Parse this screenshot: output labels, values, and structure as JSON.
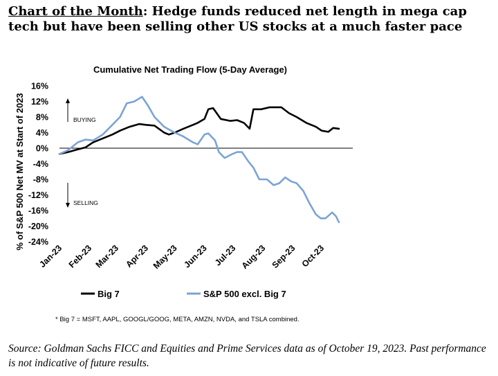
{
  "headline": {
    "lead": "Chart of the Month",
    "rest": ": Hedge funds reduced net length in mega cap tech but have been selling other US stocks at a much faster pace"
  },
  "footer": {
    "source": "Source: Goldman Sachs FICC and Equities and Prime Services data as of October 19, 2023. Past performance is not indicative of future results."
  },
  "chart_data": {
    "type": "line",
    "title": "Cumulative Net Trading Flow (5-Day Average)",
    "ylabel": "% of S&P 500 Net MV at Start of 2023",
    "xlabel": "",
    "ylim": [
      -24,
      16
    ],
    "y_ticks": [
      "16%",
      "12%",
      "8%",
      "4%",
      "0%",
      "-4%",
      "-8%",
      "-12%",
      "-16%",
      "-20%",
      "-24%"
    ],
    "x_ticks": [
      "Jan-23",
      "Feb-23",
      "Mar-23",
      "Apr-23",
      "May-23",
      "Jun-23",
      "Jul-23",
      "Aug-23",
      "Sep-23",
      "Oct-23"
    ],
    "annotations": {
      "buying": "BUYING",
      "selling": "SELLING"
    },
    "footnote": "* Big 7 = MSFT, AAPL, GOOGL/GOOG, META, AMZN, NVDA, and TSLA combined.",
    "legend_position": "bottom-left",
    "series": [
      {
        "name": "Big 7",
        "color": "#000000",
        "points": [
          [
            "2023-01-01",
            -1.5
          ],
          [
            "2023-01-10",
            -1.0
          ],
          [
            "2023-01-20",
            -0.3
          ],
          [
            "2023-01-28",
            0.2
          ],
          [
            "2023-02-05",
            1.5
          ],
          [
            "2023-02-15",
            2.5
          ],
          [
            "2023-02-25",
            3.5
          ],
          [
            "2023-03-05",
            4.5
          ],
          [
            "2023-03-15",
            5.5
          ],
          [
            "2023-03-25",
            6.2
          ],
          [
            "2023-04-01",
            6.0
          ],
          [
            "2023-04-10",
            5.8
          ],
          [
            "2023-04-20",
            4.0
          ],
          [
            "2023-04-25",
            3.5
          ],
          [
            "2023-05-01",
            4.0
          ],
          [
            "2023-05-10",
            5.0
          ],
          [
            "2023-05-20",
            6.0
          ],
          [
            "2023-05-25",
            6.5
          ],
          [
            "2023-06-01",
            7.5
          ],
          [
            "2023-06-05",
            10.0
          ],
          [
            "2023-06-10",
            10.3
          ],
          [
            "2023-06-18",
            7.5
          ],
          [
            "2023-06-28",
            7.0
          ],
          [
            "2023-07-05",
            7.2
          ],
          [
            "2023-07-12",
            6.5
          ],
          [
            "2023-07-18",
            5.0
          ],
          [
            "2023-07-22",
            10.0
          ],
          [
            "2023-07-30",
            10.0
          ],
          [
            "2023-08-08",
            10.5
          ],
          [
            "2023-08-20",
            10.5
          ],
          [
            "2023-08-28",
            9.0
          ],
          [
            "2023-09-05",
            8.0
          ],
          [
            "2023-09-15",
            6.5
          ],
          [
            "2023-09-25",
            5.5
          ],
          [
            "2023-10-01",
            4.5
          ],
          [
            "2023-10-08",
            4.2
          ],
          [
            "2023-10-13",
            5.2
          ],
          [
            "2023-10-19",
            5.0
          ]
        ]
      },
      {
        "name": "S&P 500 excl. Big 7",
        "color": "#7ba3d6",
        "points": [
          [
            "2023-01-01",
            -1.5
          ],
          [
            "2023-01-10",
            -0.5
          ],
          [
            "2023-01-20",
            1.5
          ],
          [
            "2023-01-28",
            2.2
          ],
          [
            "2023-02-05",
            2.0
          ],
          [
            "2023-02-15",
            3.5
          ],
          [
            "2023-02-25",
            6.0
          ],
          [
            "2023-03-05",
            8.0
          ],
          [
            "2023-03-12",
            11.5
          ],
          [
            "2023-03-20",
            12.0
          ],
          [
            "2023-03-28",
            13.2
          ],
          [
            "2023-04-03",
            11.0
          ],
          [
            "2023-04-10",
            8.0
          ],
          [
            "2023-04-20",
            5.5
          ],
          [
            "2023-05-01",
            4.0
          ],
          [
            "2023-05-10",
            3.0
          ],
          [
            "2023-05-20",
            1.5
          ],
          [
            "2023-05-25",
            1.0
          ],
          [
            "2023-06-01",
            3.5
          ],
          [
            "2023-06-05",
            3.8
          ],
          [
            "2023-06-12",
            2.0
          ],
          [
            "2023-06-16",
            -1.0
          ],
          [
            "2023-06-22",
            -2.5
          ],
          [
            "2023-06-30",
            -1.5
          ],
          [
            "2023-07-05",
            -1.0
          ],
          [
            "2023-07-10",
            -1.0
          ],
          [
            "2023-07-17",
            -3.5
          ],
          [
            "2023-07-22",
            -5.0
          ],
          [
            "2023-07-28",
            -8.0
          ],
          [
            "2023-08-05",
            -8.0
          ],
          [
            "2023-08-12",
            -9.5
          ],
          [
            "2023-08-18",
            -9.0
          ],
          [
            "2023-08-24",
            -7.5
          ],
          [
            "2023-08-30",
            -8.5
          ],
          [
            "2023-09-05",
            -9.0
          ],
          [
            "2023-09-12",
            -11.0
          ],
          [
            "2023-09-18",
            -14.0
          ],
          [
            "2023-09-25",
            -17.0
          ],
          [
            "2023-09-30",
            -18.0
          ],
          [
            "2023-10-05",
            -18.0
          ],
          [
            "2023-10-12",
            -16.5
          ],
          [
            "2023-10-16",
            -17.5
          ],
          [
            "2023-10-19",
            -19.0
          ]
        ]
      }
    ]
  }
}
